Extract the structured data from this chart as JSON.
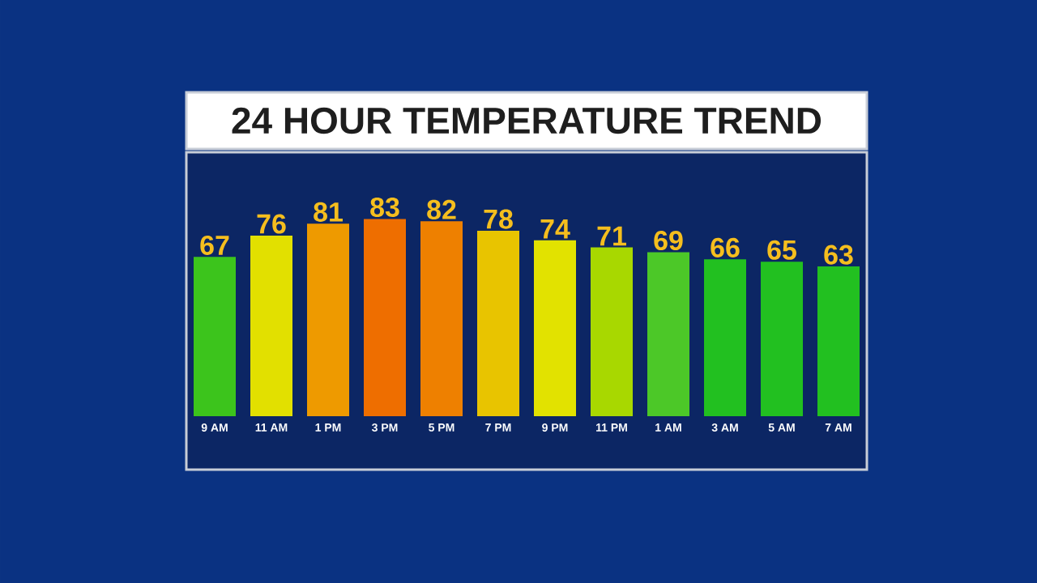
{
  "chart_data": {
    "type": "bar",
    "title": "24 HOUR TEMPERATURE TREND",
    "categories": [
      "9 AM",
      "11 AM",
      "1 PM",
      "3 PM",
      "5 PM",
      "7 PM",
      "9 PM",
      "11 PM",
      "1 AM",
      "3 AM",
      "5 AM",
      "7 AM"
    ],
    "values": [
      67,
      76,
      81,
      83,
      82,
      78,
      74,
      71,
      69,
      66,
      65,
      63
    ],
    "colors": [
      "#3cc41c",
      "#e2e000",
      "#ee9a00",
      "#ee6e00",
      "#ee8000",
      "#e8c400",
      "#e2e200",
      "#a8d800",
      "#4cc828",
      "#22c020",
      "#22c020",
      "#22c020"
    ],
    "data_labels": true
  }
}
